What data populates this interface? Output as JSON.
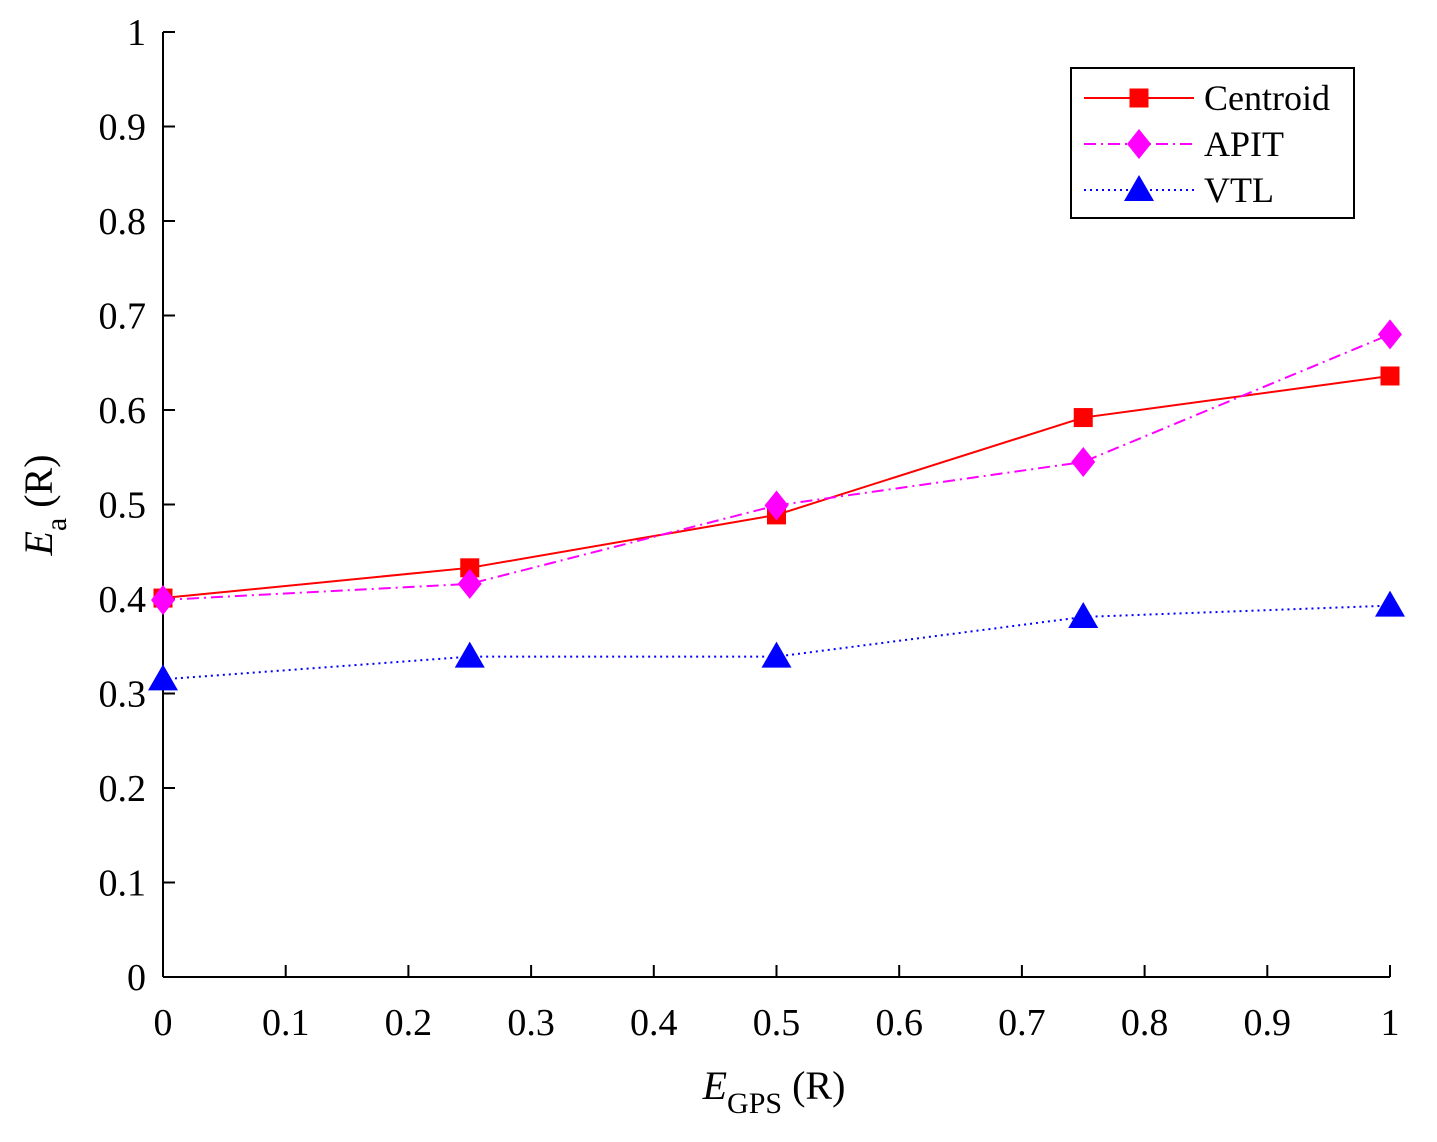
{
  "chart_data": {
    "type": "line",
    "xlabel": {
      "main": "E",
      "sub": "GPS",
      "unit": "(R)"
    },
    "ylabel": {
      "main": "E",
      "sub": "a",
      "unit": "(R)"
    },
    "xlim": [
      0,
      1
    ],
    "ylim": [
      0,
      1
    ],
    "xticks": [
      "0",
      "0.1",
      "0.2",
      "0.3",
      "0.4",
      "0.5",
      "0.6",
      "0.7",
      "0.8",
      "0.9",
      "1"
    ],
    "yticks": [
      "0",
      "0.1",
      "0.2",
      "0.3",
      "0.4",
      "0.5",
      "0.6",
      "0.7",
      "0.8",
      "0.9",
      "1"
    ],
    "grid": false,
    "legend_position": "top-right",
    "x": [
      0,
      0.25,
      0.5,
      0.75,
      1
    ],
    "series": [
      {
        "name": "Centroid",
        "values": [
          0.401,
          0.433,
          0.489,
          0.592,
          0.636
        ],
        "color": "#ff0000",
        "marker": "square",
        "line_style": "solid"
      },
      {
        "name": "APIT",
        "values": [
          0.399,
          0.416,
          0.499,
          0.545,
          0.68
        ],
        "color": "#ff00ff",
        "marker": "diamond",
        "line_style": "dashdot"
      },
      {
        "name": "VTL",
        "values": [
          0.315,
          0.339,
          0.339,
          0.381,
          0.393
        ],
        "color": "#0000ff",
        "marker": "triangle",
        "line_style": "dotted"
      }
    ]
  }
}
